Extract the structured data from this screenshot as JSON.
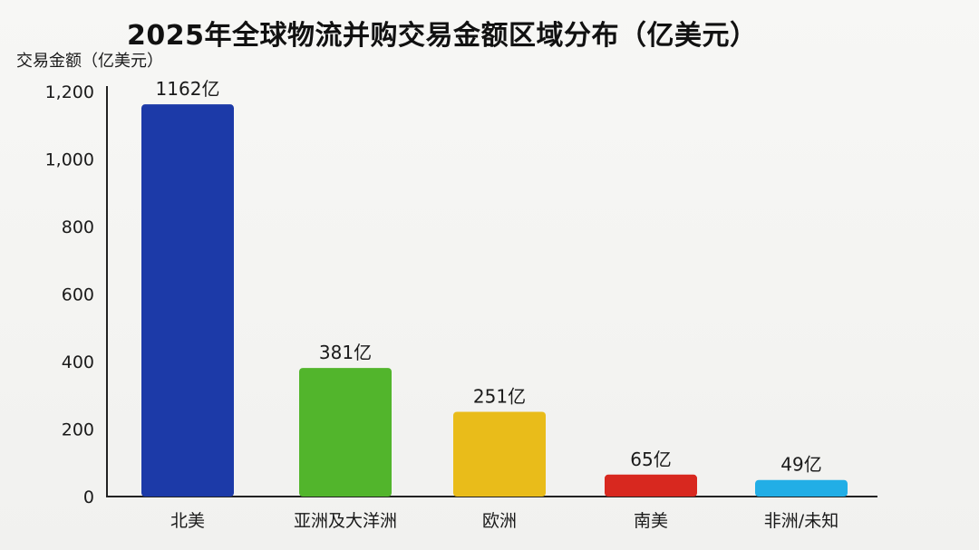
{
  "chart_data": {
    "type": "bar",
    "title": "2025年全球物流并购交易金额区域分布（亿美元）",
    "ylabel": "交易金额（亿美元）",
    "xlabel": "",
    "categories": [
      "北美",
      "亚洲及大洋洲",
      "欧洲",
      "南美",
      "非洲/未知"
    ],
    "values": [
      1162,
      381,
      251,
      65,
      49
    ],
    "value_labels": [
      "1162亿",
      "381亿",
      "251亿",
      "65亿",
      "49亿"
    ],
    "colors": [
      "#1c3aa8",
      "#52b52c",
      "#e9bc1a",
      "#d8281f",
      "#22aee6"
    ],
    "ylim": [
      0,
      1200
    ],
    "yticks": [
      0,
      200,
      400,
      600,
      800,
      1000,
      1200
    ],
    "ytick_labels": [
      "0",
      "200",
      "400",
      "600",
      "800",
      "1,000",
      "1,200"
    ],
    "grid": false,
    "legend": "none"
  }
}
